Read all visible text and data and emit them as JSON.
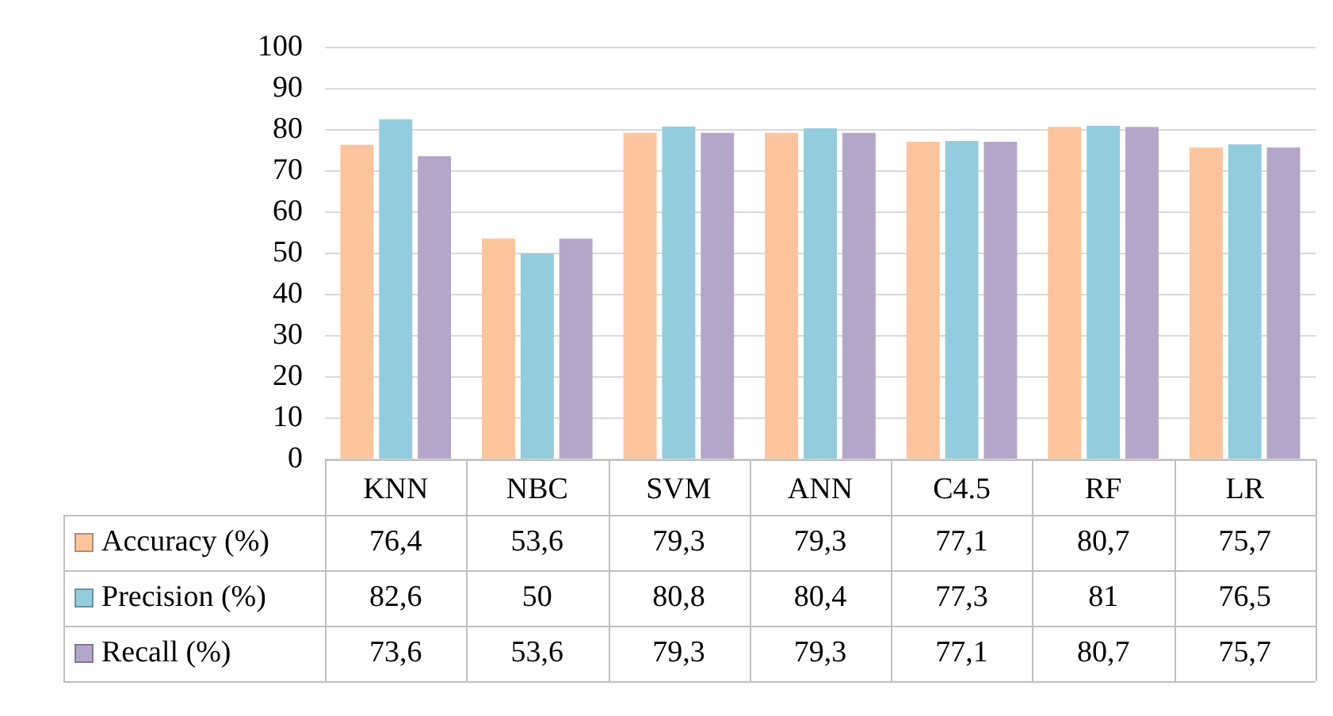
{
  "chart_data": {
    "type": "bar",
    "categories": [
      "KNN",
      "NBC",
      "SVM",
      "ANN",
      "C4.5",
      "RF",
      "LR"
    ],
    "series": [
      {
        "name": "Accuracy (%)",
        "color": "#fbc49c",
        "values": [
          76.4,
          53.6,
          79.3,
          79.3,
          77.1,
          80.7,
          75.7
        ],
        "value_labels": [
          "76,4",
          "53,6",
          "79,3",
          "79,3",
          "77,1",
          "80,7",
          "75,7"
        ]
      },
      {
        "name": "Precision (%)",
        "color": "#93cddd",
        "values": [
          82.6,
          50,
          80.8,
          80.4,
          77.3,
          81,
          76.5
        ],
        "value_labels": [
          "82,6",
          "50",
          "80,8",
          "80,4",
          "77,3",
          "81",
          "76,5"
        ]
      },
      {
        "name": "Recall (%)",
        "color": "#b4a6c9",
        "values": [
          73.6,
          53.6,
          79.3,
          79.3,
          77.1,
          80.7,
          75.7
        ],
        "value_labels": [
          "73,6",
          "53,6",
          "79,3",
          "79,3",
          "77,1",
          "80,7",
          "75,7"
        ]
      }
    ],
    "ylim": [
      0,
      100
    ],
    "yticks": [
      0,
      10,
      20,
      30,
      40,
      50,
      60,
      70,
      80,
      90,
      100
    ],
    "grid": "y",
    "legend": "bottom"
  }
}
